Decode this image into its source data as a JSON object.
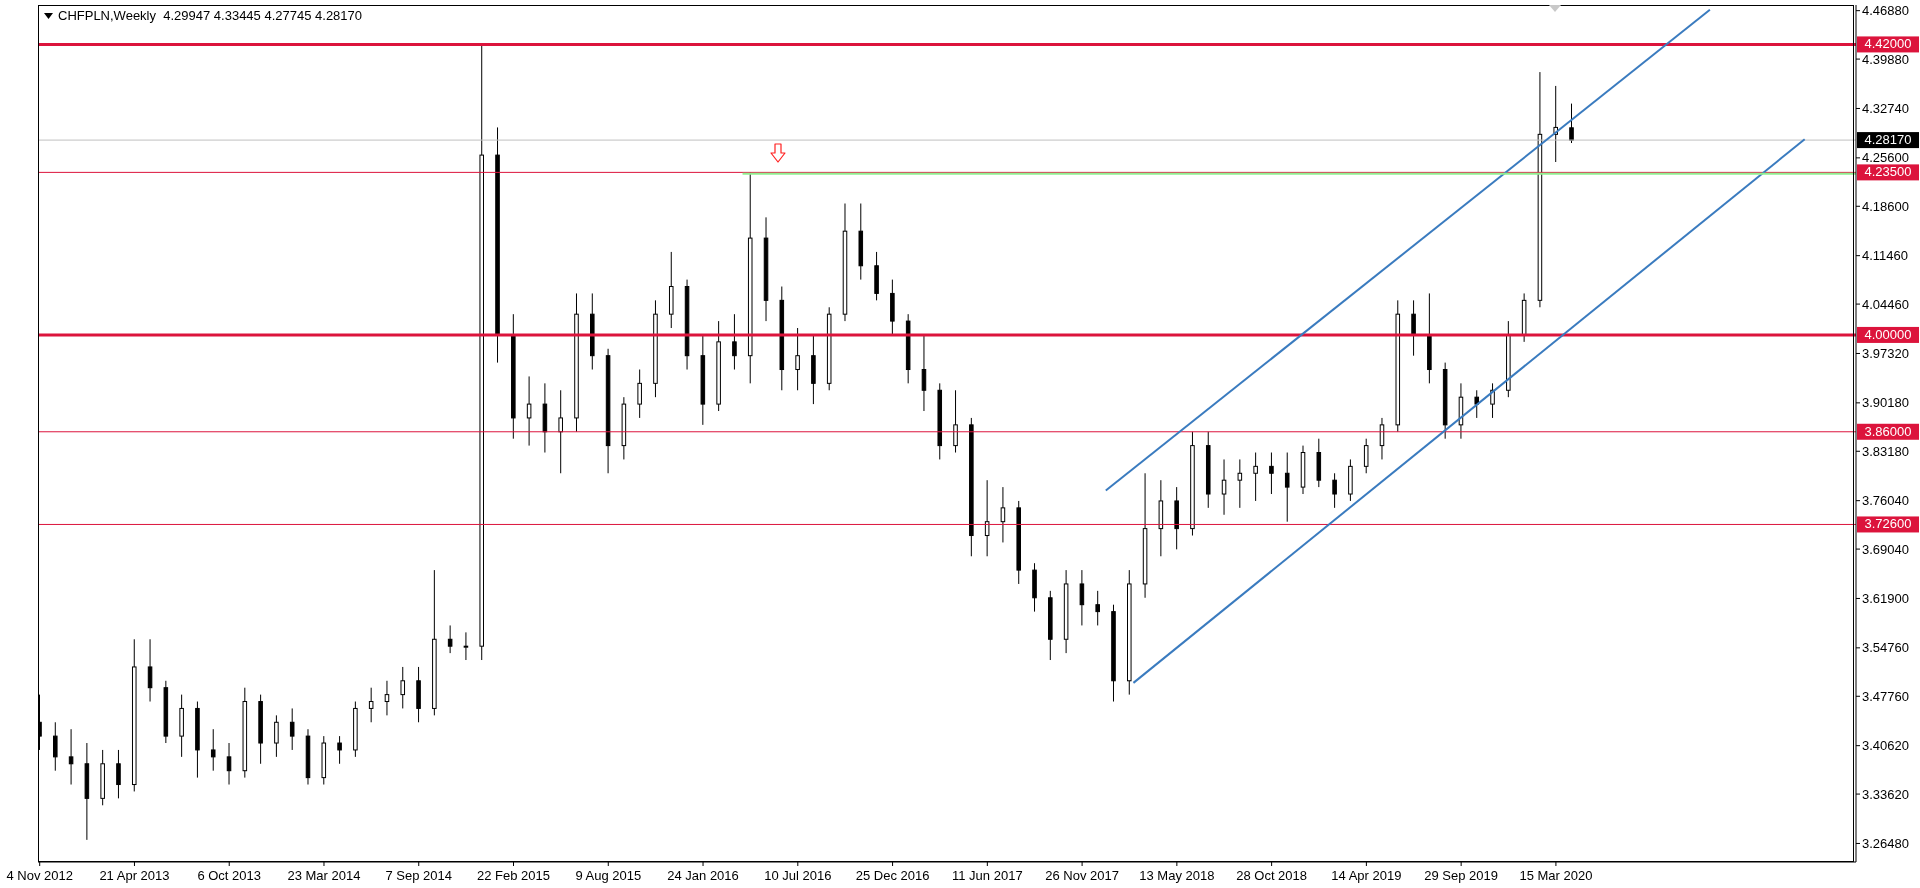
{
  "chart_data": {
    "type": "candlestick",
    "title": "CHFPLN,Weekly  4.29947 4.33445 4.27745 4.28170",
    "color": "#000000",
    "x": [
      "2012-11-04",
      "2012-12-02",
      "2012-12-30",
      "2013-01-27",
      "2013-02-24",
      "2013-03-24",
      "2013-04-21",
      "2013-05-19",
      "2013-06-16",
      "2013-07-14",
      "2013-08-11",
      "2013-09-08",
      "2013-10-06",
      "2013-11-03",
      "2013-12-01",
      "2013-12-29",
      "2014-01-26",
      "2014-02-23",
      "2014-03-23",
      "2014-04-20",
      "2014-05-18",
      "2014-06-15",
      "2014-07-13",
      "2014-08-10",
      "2014-09-07",
      "2014-10-05",
      "2014-11-02",
      "2014-11-30",
      "2014-12-28",
      "2015-01-25",
      "2015-02-22",
      "2015-03-22",
      "2015-04-19",
      "2015-05-17",
      "2015-06-14",
      "2015-07-12",
      "2015-08-09",
      "2015-09-06",
      "2015-10-04",
      "2015-11-01",
      "2015-11-29",
      "2015-12-27",
      "2016-01-24",
      "2016-02-21",
      "2016-03-20",
      "2016-04-17",
      "2016-05-15",
      "2016-06-12",
      "2016-07-10",
      "2016-08-07",
      "2016-09-04",
      "2016-10-02",
      "2016-10-30",
      "2016-11-27",
      "2016-12-25",
      "2017-01-22",
      "2017-02-19",
      "2017-03-19",
      "2017-04-16",
      "2017-05-14",
      "2017-06-11",
      "2017-07-09",
      "2017-08-06",
      "2017-09-03",
      "2017-10-01",
      "2017-10-29",
      "2017-11-26",
      "2017-12-24",
      "2018-01-21",
      "2018-02-18",
      "2018-03-18",
      "2018-04-15",
      "2018-05-13",
      "2018-06-10",
      "2018-07-08",
      "2018-08-05",
      "2018-09-02",
      "2018-09-30",
      "2018-10-28",
      "2018-11-25",
      "2018-12-23",
      "2019-01-20",
      "2019-02-17",
      "2019-03-17",
      "2019-04-14",
      "2019-05-12",
      "2019-06-09",
      "2019-07-07",
      "2019-08-04",
      "2019-09-01",
      "2019-09-29",
      "2019-10-27",
      "2019-11-24",
      "2019-12-22",
      "2020-01-19",
      "2020-02-16",
      "2020-03-15",
      "2020-04-12"
    ],
    "ohlc": [
      [
        3.44,
        3.48,
        3.4,
        3.42
      ],
      [
        3.42,
        3.44,
        3.37,
        3.39
      ],
      [
        3.39,
        3.43,
        3.35,
        3.38
      ],
      [
        3.38,
        3.41,
        3.27,
        3.33
      ],
      [
        3.33,
        3.4,
        3.32,
        3.38
      ],
      [
        3.38,
        3.4,
        3.33,
        3.35
      ],
      [
        3.35,
        3.56,
        3.34,
        3.52
      ],
      [
        3.52,
        3.56,
        3.47,
        3.49
      ],
      [
        3.49,
        3.5,
        3.41,
        3.42
      ],
      [
        3.42,
        3.48,
        3.39,
        3.46
      ],
      [
        3.46,
        3.47,
        3.36,
        3.4
      ],
      [
        3.4,
        3.43,
        3.37,
        3.39
      ],
      [
        3.39,
        3.41,
        3.35,
        3.37
      ],
      [
        3.37,
        3.49,
        3.36,
        3.47
      ],
      [
        3.47,
        3.48,
        3.38,
        3.41
      ],
      [
        3.41,
        3.45,
        3.39,
        3.44
      ],
      [
        3.44,
        3.46,
        3.4,
        3.42
      ],
      [
        3.42,
        3.43,
        3.35,
        3.36
      ],
      [
        3.36,
        3.42,
        3.35,
        3.41
      ],
      [
        3.41,
        3.42,
        3.38,
        3.4
      ],
      [
        3.4,
        3.47,
        3.39,
        3.46
      ],
      [
        3.46,
        3.49,
        3.44,
        3.47
      ],
      [
        3.47,
        3.5,
        3.45,
        3.48
      ],
      [
        3.48,
        3.52,
        3.46,
        3.5
      ],
      [
        3.5,
        3.52,
        3.44,
        3.46
      ],
      [
        3.46,
        3.66,
        3.45,
        3.56
      ],
      [
        3.56,
        3.58,
        3.54,
        3.55
      ],
      [
        3.55,
        3.57,
        3.53,
        3.55
      ],
      [
        3.55,
        4.42,
        3.53,
        4.26
      ],
      [
        4.26,
        4.3,
        3.96,
        4.0
      ],
      [
        4.0,
        4.03,
        3.85,
        3.88
      ],
      [
        3.88,
        3.94,
        3.84,
        3.9
      ],
      [
        3.9,
        3.93,
        3.83,
        3.86
      ],
      [
        3.86,
        3.92,
        3.8,
        3.88
      ],
      [
        3.88,
        4.06,
        3.86,
        4.03
      ],
      [
        4.03,
        4.06,
        3.95,
        3.97
      ],
      [
        3.97,
        3.98,
        3.8,
        3.84
      ],
      [
        3.84,
        3.91,
        3.82,
        3.9
      ],
      [
        3.9,
        3.95,
        3.88,
        3.93
      ],
      [
        3.93,
        4.05,
        3.91,
        4.03
      ],
      [
        4.03,
        4.12,
        4.01,
        4.07
      ],
      [
        4.07,
        4.08,
        3.95,
        3.97
      ],
      [
        3.97,
        4.0,
        3.87,
        3.9
      ],
      [
        3.9,
        4.02,
        3.89,
        3.99
      ],
      [
        3.99,
        4.03,
        3.95,
        3.97
      ],
      [
        3.97,
        4.235,
        3.93,
        4.14
      ],
      [
        4.14,
        4.17,
        4.02,
        4.05
      ],
      [
        4.05,
        4.07,
        3.92,
        3.95
      ],
      [
        3.95,
        4.01,
        3.92,
        3.97
      ],
      [
        3.97,
        4.0,
        3.9,
        3.93
      ],
      [
        3.93,
        4.04,
        3.92,
        4.03
      ],
      [
        4.03,
        4.19,
        4.02,
        4.15
      ],
      [
        4.15,
        4.19,
        4.08,
        4.1
      ],
      [
        4.1,
        4.12,
        4.05,
        4.06
      ],
      [
        4.06,
        4.08,
        4.0,
        4.02
      ],
      [
        4.02,
        4.03,
        3.93,
        3.95
      ],
      [
        3.95,
        4.0,
        3.89,
        3.92
      ],
      [
        3.92,
        3.93,
        3.82,
        3.84
      ],
      [
        3.84,
        3.92,
        3.83,
        3.87
      ],
      [
        3.87,
        3.88,
        3.68,
        3.71
      ],
      [
        3.71,
        3.79,
        3.68,
        3.73
      ],
      [
        3.73,
        3.78,
        3.7,
        3.75
      ],
      [
        3.75,
        3.76,
        3.64,
        3.66
      ],
      [
        3.66,
        3.67,
        3.6,
        3.62
      ],
      [
        3.62,
        3.63,
        3.53,
        3.56
      ],
      [
        3.56,
        3.66,
        3.54,
        3.64
      ],
      [
        3.64,
        3.66,
        3.58,
        3.61
      ],
      [
        3.61,
        3.63,
        3.58,
        3.6
      ],
      [
        3.6,
        3.61,
        3.47,
        3.5
      ],
      [
        3.5,
        3.66,
        3.48,
        3.64
      ],
      [
        3.64,
        3.8,
        3.62,
        3.72
      ],
      [
        3.72,
        3.79,
        3.68,
        3.76
      ],
      [
        3.76,
        3.78,
        3.69,
        3.72
      ],
      [
        3.72,
        3.86,
        3.71,
        3.84
      ],
      [
        3.84,
        3.86,
        3.75,
        3.77
      ],
      [
        3.77,
        3.82,
        3.74,
        3.79
      ],
      [
        3.79,
        3.82,
        3.75,
        3.8
      ],
      [
        3.8,
        3.83,
        3.76,
        3.81
      ],
      [
        3.81,
        3.83,
        3.77,
        3.8
      ],
      [
        3.8,
        3.83,
        3.73,
        3.78
      ],
      [
        3.78,
        3.84,
        3.77,
        3.83
      ],
      [
        3.83,
        3.85,
        3.78,
        3.79
      ],
      [
        3.79,
        3.8,
        3.75,
        3.77
      ],
      [
        3.77,
        3.82,
        3.76,
        3.81
      ],
      [
        3.81,
        3.85,
        3.8,
        3.84
      ],
      [
        3.84,
        3.88,
        3.82,
        3.87
      ],
      [
        3.87,
        4.05,
        3.86,
        4.03
      ],
      [
        4.03,
        4.05,
        3.97,
        4.0
      ],
      [
        4.0,
        4.06,
        3.93,
        3.95
      ],
      [
        3.95,
        3.96,
        3.85,
        3.87
      ],
      [
        3.87,
        3.93,
        3.85,
        3.91
      ],
      [
        3.91,
        3.92,
        3.88,
        3.9
      ],
      [
        3.9,
        3.93,
        3.88,
        3.92
      ],
      [
        3.92,
        4.02,
        3.91,
        4.0
      ],
      [
        4.0,
        4.06,
        3.99,
        4.05
      ],
      [
        4.05,
        4.38,
        4.04,
        4.29
      ],
      [
        4.29,
        4.36,
        4.25,
        4.3
      ],
      [
        4.29947,
        4.33445,
        4.27745,
        4.2817
      ]
    ],
    "series": [
      {
        "type": "line",
        "color": "#3a7bbf",
        "x": [
          "2018-01-07",
          "2020-12-13"
        ],
        "values": [
          3.775,
          4.47
        ]
      },
      {
        "type": "line",
        "color": "#3a7bbf",
        "x": [
          "2018-02-25",
          "2021-05-30"
        ],
        "values": [
          3.497,
          4.283
        ]
      },
      {
        "type": "line",
        "color": "#90ee90",
        "x": [
          "2016-04-03",
          "2021-08-29"
        ],
        "values": [
          4.233,
          4.233
        ]
      }
    ],
    "xlim": [
      "2012-11-01",
      "2021-08-29"
    ],
    "xticks": [
      {
        "value": "2012-11-04",
        "label": "4 Nov 2012"
      },
      {
        "value": "2013-04-21",
        "label": "21 Apr 2013"
      },
      {
        "value": "2013-10-06",
        "label": "6 Oct 2013"
      },
      {
        "value": "2014-03-23",
        "label": "23 Mar 2014"
      },
      {
        "value": "2014-09-07",
        "label": "7 Sep 2014"
      },
      {
        "value": "2015-02-22",
        "label": "22 Feb 2015"
      },
      {
        "value": "2015-08-09",
        "label": "9 Aug 2015"
      },
      {
        "value": "2016-01-24",
        "label": "24 Jan 2016"
      },
      {
        "value": "2016-07-10",
        "label": "10 Jul 2016"
      },
      {
        "value": "2016-12-25",
        "label": "25 Dec 2016"
      },
      {
        "value": "2017-06-11",
        "label": "11 Jun 2017"
      },
      {
        "value": "2017-11-26",
        "label": "26 Nov 2017"
      },
      {
        "value": "2018-05-13",
        "label": "13 May 2018"
      },
      {
        "value": "2018-10-28",
        "label": "28 Oct 2018"
      },
      {
        "value": "2019-04-14",
        "label": "14 Apr 2019"
      },
      {
        "value": "2019-09-29",
        "label": "29 Sep 2019"
      },
      {
        "value": "2020-03-15",
        "label": "15 Mar 2020"
      }
    ],
    "ylim": [
      3.238,
      4.477
    ],
    "yticks": [
      {
        "value": 3.2648,
        "label": "3.26480"
      },
      {
        "value": 3.3362,
        "label": "3.33620"
      },
      {
        "value": 3.4062,
        "label": "3.40620"
      },
      {
        "value": 3.4776,
        "label": "3.47760"
      },
      {
        "value": 3.5476,
        "label": "3.54760"
      },
      {
        "value": 3.619,
        "label": "3.61900"
      },
      {
        "value": 3.6904,
        "label": "3.69040"
      },
      {
        "value": 3.7604,
        "label": "3.76040"
      },
      {
        "value": 3.8318,
        "label": "3.83180"
      },
      {
        "value": 3.9018,
        "label": "3.90180"
      },
      {
        "value": 3.9732,
        "label": "3.97320"
      },
      {
        "value": 4.0446,
        "label": "4.04460"
      },
      {
        "value": 4.1146,
        "label": "4.11460"
      },
      {
        "value": 4.186,
        "label": "4.18600"
      },
      {
        "value": 4.256,
        "label": "4.25600"
      },
      {
        "value": 4.3274,
        "label": "4.32740"
      },
      {
        "value": 4.3988,
        "label": "4.39880"
      },
      {
        "value": 4.4688,
        "label": "4.46880"
      }
    ],
    "ref_lines": [
      {
        "axis": "y",
        "value": 4.42,
        "label": "4.42000",
        "color": "#dc143c"
      },
      {
        "axis": "y",
        "value": 4.235,
        "label": "4.23500",
        "color": "#dc143c"
      },
      {
        "axis": "y",
        "value": 4.0,
        "label": "4.00000",
        "color": "#dc143c"
      },
      {
        "axis": "y",
        "value": 3.86,
        "label": "3.86000",
        "color": "#dc143c"
      },
      {
        "axis": "y",
        "value": 3.726,
        "label": "3.72600",
        "color": "#dc143c"
      },
      {
        "axis": "y",
        "value": 4.2817,
        "label": "4.28170",
        "color": "#c0c0c0"
      }
    ]
  }
}
